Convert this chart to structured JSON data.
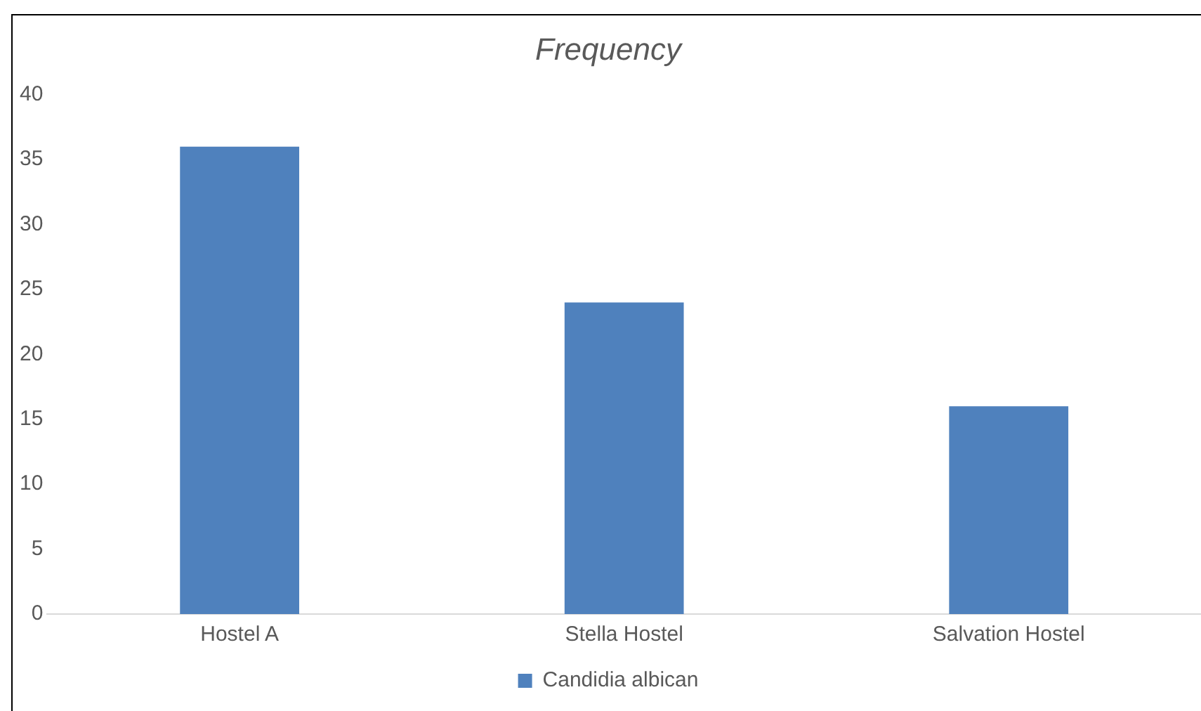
{
  "chart_data": {
    "type": "bar",
    "title": "Frequency",
    "categories": [
      "Hostel A",
      "Stella Hostel",
      "Salvation Hostel"
    ],
    "series": [
      {
        "name": "Candidia albican",
        "color": "#4f81bd",
        "values": [
          36,
          24,
          16
        ]
      }
    ],
    "ylim": [
      0,
      40
    ],
    "yticks": [
      0,
      5,
      10,
      15,
      20,
      25,
      30,
      35,
      40
    ],
    "grid": false,
    "legend": "bottom"
  }
}
